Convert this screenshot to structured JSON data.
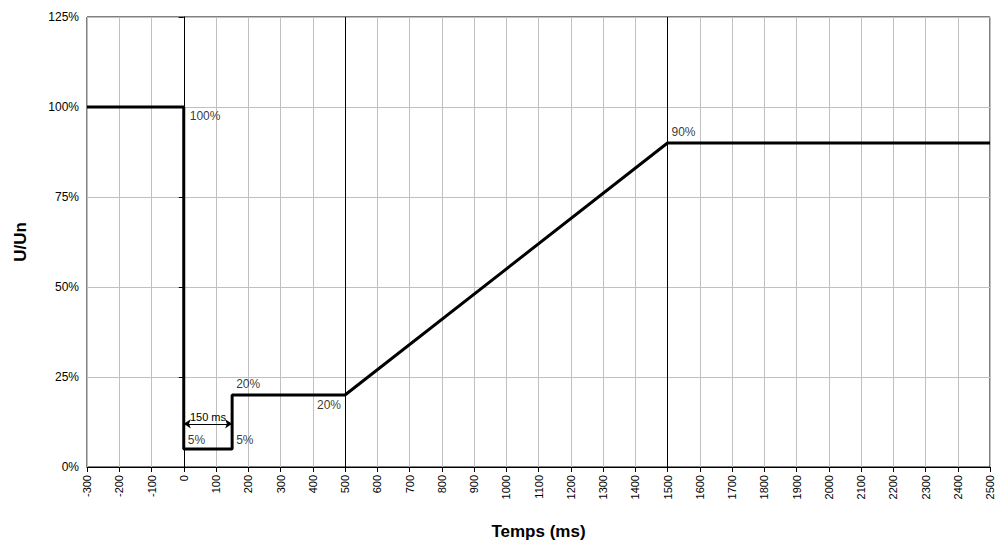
{
  "chart_data": {
    "type": "line",
    "x_label": "Temps (ms)",
    "y_label": "U/Un",
    "x": [
      -300,
      0,
      0,
      150,
      150,
      500,
      1500,
      2500
    ],
    "values": [
      100,
      100,
      5,
      5,
      20,
      20,
      90,
      90
    ],
    "color": "#000000",
    "xlim": [
      -300,
      2500
    ],
    "xticks": [
      -300,
      -200,
      -100,
      0,
      100,
      200,
      300,
      400,
      500,
      600,
      700,
      800,
      900,
      1000,
      1100,
      1200,
      1300,
      1400,
      1500,
      1600,
      1700,
      1800,
      1900,
      2000,
      2100,
      2200,
      2300,
      2400,
      2500
    ],
    "ylim": [
      0,
      125
    ],
    "yticks": [
      {
        "value": 0,
        "label": "0%"
      },
      {
        "value": 25,
        "label": "25%"
      },
      {
        "value": 50,
        "label": "50%"
      },
      {
        "value": 75,
        "label": "75%"
      },
      {
        "value": 100,
        "label": "100%"
      },
      {
        "value": 125,
        "label": "125%"
      }
    ],
    "grid": true,
    "annotations": [
      {
        "text": "100%",
        "x": 0,
        "y": 100
      },
      {
        "text": "5%",
        "x": 0,
        "y": 5
      },
      {
        "text": "5%",
        "x": 150,
        "y": 5
      },
      {
        "text": "20%",
        "x": 150,
        "y": 20
      },
      {
        "text": "20%",
        "x": 500,
        "y": 20
      },
      {
        "text": "90%",
        "x": 1500,
        "y": 90
      }
    ],
    "vlines": [
      500,
      1500
    ],
    "dimension": {
      "text": "150 ms",
      "x": [
        0,
        150
      ],
      "y": 12
    }
  }
}
